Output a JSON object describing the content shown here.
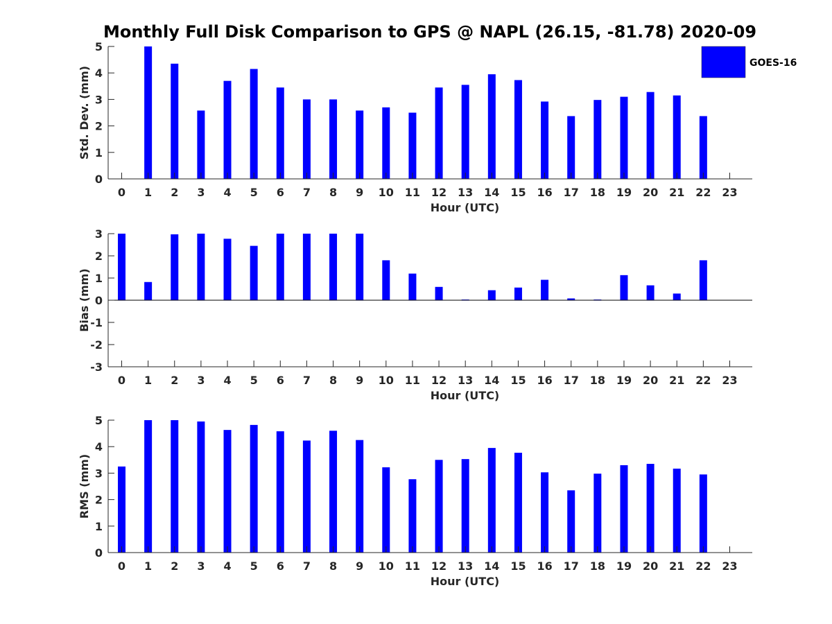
{
  "title": "Monthly Full Disk Comparison to GPS @ NAPL (26.15, -81.78) 2020-09",
  "legend": {
    "label": "GOES-16",
    "color": "#0000ff",
    "position": "top-right"
  },
  "colors": {
    "bar": "#0000ff",
    "axis": "#262626"
  },
  "chart_data": [
    {
      "type": "bar",
      "ylabel": "Std. Dev. (mm)",
      "xlabel": "Hour (UTC)",
      "ylim": [
        0,
        5
      ],
      "yticks": [
        0,
        1,
        2,
        3,
        4,
        5
      ],
      "x": [
        0,
        1,
        2,
        3,
        4,
        5,
        6,
        7,
        8,
        9,
        10,
        11,
        12,
        13,
        14,
        15,
        16,
        17,
        18,
        19,
        20,
        21,
        22,
        23
      ],
      "series": [
        {
          "name": "GOES-16",
          "values": [
            null,
            5.0,
            4.35,
            2.58,
            3.7,
            4.15,
            3.45,
            3.0,
            3.0,
            2.58,
            2.7,
            2.5,
            3.45,
            3.55,
            3.95,
            3.73,
            2.92,
            2.37,
            2.98,
            3.1,
            3.28,
            3.15,
            2.37,
            null
          ]
        }
      ]
    },
    {
      "type": "bar",
      "ylabel": "Bias (mm)",
      "xlabel": "Hour (UTC)",
      "ylim": [
        -3,
        3
      ],
      "yticks": [
        -3,
        -2,
        -1,
        0,
        1,
        2,
        3
      ],
      "x": [
        0,
        1,
        2,
        3,
        4,
        5,
        6,
        7,
        8,
        9,
        10,
        11,
        12,
        13,
        14,
        15,
        16,
        17,
        18,
        19,
        20,
        21,
        22,
        23
      ],
      "series": [
        {
          "name": "GOES-16",
          "values": [
            3.0,
            0.82,
            2.97,
            3.0,
            2.77,
            2.45,
            3.0,
            3.0,
            3.0,
            3.0,
            1.8,
            1.2,
            0.6,
            0.03,
            0.45,
            0.57,
            0.92,
            0.08,
            0.03,
            1.13,
            0.67,
            0.3,
            1.8,
            null
          ]
        }
      ]
    },
    {
      "type": "bar",
      "ylabel": "RMS (mm)",
      "xlabel": "Hour (UTC)",
      "ylim": [
        0,
        5
      ],
      "yticks": [
        0,
        1,
        2,
        3,
        4,
        5
      ],
      "x": [
        0,
        1,
        2,
        3,
        4,
        5,
        6,
        7,
        8,
        9,
        10,
        11,
        12,
        13,
        14,
        15,
        16,
        17,
        18,
        19,
        20,
        21,
        22,
        23
      ],
      "series": [
        {
          "name": "GOES-16",
          "values": [
            3.25,
            5.0,
            5.0,
            4.95,
            4.63,
            4.82,
            4.58,
            4.23,
            4.6,
            4.25,
            3.22,
            2.77,
            3.5,
            3.53,
            3.95,
            3.77,
            3.03,
            2.35,
            2.98,
            3.3,
            3.35,
            3.17,
            2.95,
            null
          ]
        }
      ]
    }
  ]
}
